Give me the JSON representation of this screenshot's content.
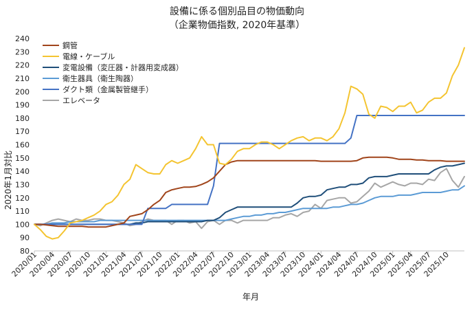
{
  "chart_data": {
    "type": "line",
    "title": "設備に係る個別品目の物価動向",
    "subtitle": "（企業物価指数, 2020年基準）",
    "xlabel": "年月",
    "ylabel": "2020年1月対比",
    "ylim": [
      80,
      240
    ],
    "yticks": [
      80,
      90,
      100,
      110,
      120,
      130,
      140,
      150,
      160,
      170,
      180,
      190,
      200,
      210,
      220,
      230,
      240
    ],
    "grid": false,
    "legend": "top-left",
    "x_labels": [
      "2020/01",
      "2020/04",
      "2020/07",
      "2020/10",
      "2021/01",
      "2021/04",
      "2021/07",
      "2021/10",
      "2022/01",
      "2022/04",
      "2022/07",
      "2022/10",
      "2023/01",
      "2023/04",
      "2023/07",
      "2023/10",
      "2024/01",
      "2024/04",
      "2024/07",
      "2024/10",
      "2025/01",
      "2025/04",
      "2025/07",
      "2025/10"
    ],
    "series": [
      {
        "name": "鋼管",
        "color": "#a0441a",
        "values": [
          100,
          100,
          99.5,
          99,
          98.5,
          98.5,
          98.5,
          98.5,
          98.5,
          98,
          98,
          98,
          98,
          99,
          100,
          101,
          106,
          107,
          108,
          111,
          115,
          118,
          124,
          126,
          127,
          128,
          128,
          128.5,
          130,
          132,
          135,
          140,
          145,
          147,
          148,
          148,
          148,
          148,
          148,
          148,
          148,
          148,
          148,
          148,
          148,
          148,
          148,
          148,
          147.5,
          147.5,
          147.5,
          147.5,
          147.5,
          147.5,
          148,
          150,
          150.5,
          150.5,
          150.5,
          150.5,
          150,
          149,
          149,
          149,
          148.5,
          148.5,
          148,
          148,
          148,
          147.5,
          147.5,
          147.5,
          147.5
        ]
      },
      {
        "name": "電線・ケーブル",
        "color": "#f4c430",
        "values": [
          100,
          96,
          91,
          89,
          90,
          95,
          101,
          102,
          103,
          105,
          107,
          110,
          115,
          117,
          122,
          130,
          134,
          145,
          142,
          139,
          138,
          138,
          145,
          148,
          146,
          148,
          150,
          157,
          166,
          160,
          160,
          146,
          145,
          149,
          155,
          157,
          157,
          160,
          162,
          162,
          160,
          157,
          160,
          163,
          165,
          166,
          163,
          165,
          165,
          163,
          166,
          172,
          184,
          204,
          202,
          198,
          183,
          180,
          189,
          188,
          185,
          189,
          189,
          192,
          184,
          186,
          192,
          195,
          195,
          199,
          212,
          220,
          233
        ]
      },
      {
        "name": "変電設備（変圧器・計器用変成器）",
        "color": "#1f4e79",
        "values": [
          100,
          100,
          100,
          100,
          100,
          100,
          100,
          100,
          100,
          100,
          100,
          100,
          100,
          100,
          100,
          100,
          100,
          101,
          101,
          102,
          102,
          102,
          102,
          102,
          102,
          102,
          102,
          102,
          102,
          103,
          103,
          105,
          109,
          111,
          113,
          113,
          113,
          113,
          113,
          113,
          113,
          113,
          113,
          113,
          116,
          120,
          121,
          121,
          122,
          126,
          127,
          128,
          128,
          130,
          130,
          131,
          135,
          136,
          136,
          136,
          137,
          138,
          138,
          138,
          138,
          138,
          138,
          141,
          143,
          144,
          144,
          145,
          146
        ]
      },
      {
        "name": "衛生器具（衛生陶器）",
        "color": "#5b9bd5",
        "values": [
          100,
          100,
          100,
          101,
          101,
          101,
          102,
          102,
          102,
          102,
          102,
          103,
          103,
          103,
          103,
          103,
          103,
          103,
          103,
          103,
          103,
          103,
          103,
          103,
          103,
          103,
          103,
          103,
          103,
          103,
          103,
          103,
          103,
          104,
          105,
          106,
          106,
          107,
          107,
          108,
          108,
          109,
          109,
          110,
          111,
          112,
          112,
          112,
          112,
          112,
          113,
          113,
          114,
          115,
          115,
          116,
          118,
          120,
          121,
          121,
          121,
          122,
          122,
          122,
          123,
          124,
          124,
          124,
          124,
          125,
          126,
          126,
          129
        ]
      },
      {
        "name": "ダクト類（金属製管継手）",
        "color": "#4472c4",
        "values": [
          100,
          100,
          100,
          100,
          100,
          100,
          100,
          100,
          100,
          100,
          100,
          100,
          100,
          100,
          100,
          100,
          100,
          100,
          100,
          112,
          112,
          112,
          112,
          115,
          115,
          115,
          115,
          115,
          115,
          115,
          129,
          161,
          161,
          161,
          161,
          161,
          161,
          161,
          161,
          161,
          161,
          161,
          161,
          161,
          161,
          161,
          161,
          161,
          161,
          161,
          161,
          161,
          161,
          165,
          182,
          182,
          182,
          182,
          182,
          182,
          182,
          182,
          182,
          182,
          182,
          182,
          182,
          182,
          182,
          182,
          182,
          182,
          182
        ]
      },
      {
        "name": "エレベータ",
        "color": "#a6a6a6",
        "values": [
          100,
          99,
          101,
          103,
          104,
          103,
          102,
          104,
          103,
          103,
          104,
          104,
          103,
          103,
          102,
          101,
          99,
          100,
          102,
          104,
          103,
          103,
          103,
          100,
          103,
          103,
          101,
          102,
          97,
          102,
          103,
          100,
          103,
          103,
          101,
          103,
          103,
          103,
          103,
          103,
          105,
          105,
          107,
          108,
          106,
          109,
          110,
          115,
          112,
          118,
          119,
          120,
          120,
          116,
          117,
          121,
          125,
          131,
          128,
          130,
          132,
          130,
          129,
          131,
          131,
          130,
          134,
          133,
          139,
          142,
          133,
          128,
          136
        ]
      }
    ]
  }
}
